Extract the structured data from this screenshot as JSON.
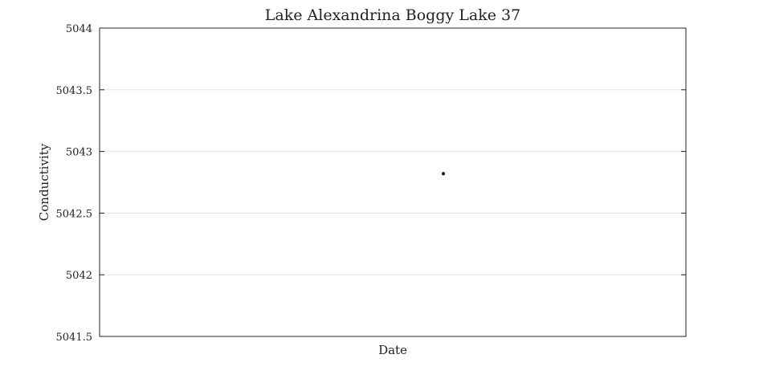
{
  "chart_data": {
    "type": "scatter",
    "title": "Lake Alexandrina Boggy Lake 37",
    "xlabel": "Date",
    "ylabel": "Conductivity",
    "ylim": [
      5041.5,
      5044
    ],
    "yticks": [
      5041.5,
      5042,
      5042.5,
      5043,
      5043.5,
      5044
    ],
    "ytick_labels": [
      "5041.5",
      "5042",
      "5042.5",
      "5043",
      "5043.5",
      "5044"
    ],
    "grid": "horizontal",
    "series": [
      {
        "color": "#000000",
        "points": [
          {
            "y": 5042.82
          }
        ]
      }
    ]
  }
}
